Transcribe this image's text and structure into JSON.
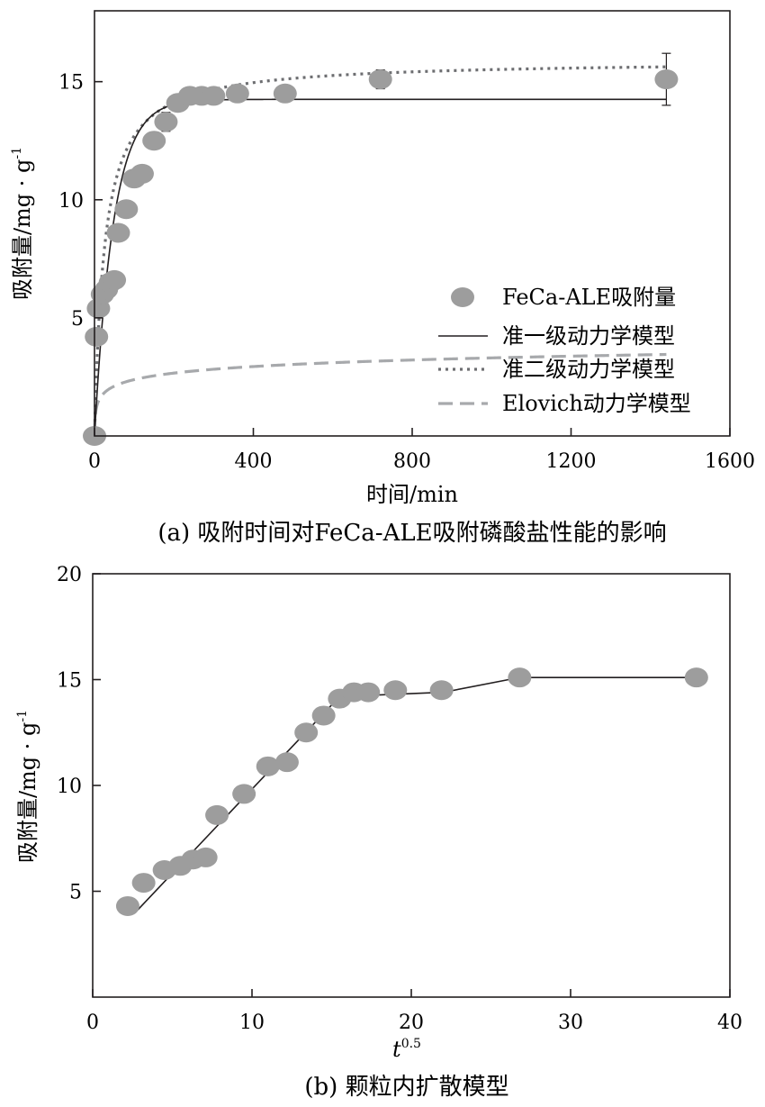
{
  "chart_data": [
    {
      "type": "scatter",
      "caption": "(a) 吸附时间对FeCa-ALE吸附磷酸盐性能的影响",
      "xlabel": "时间/min",
      "ylabel": "吸附量/mg · g",
      "ylabel_sup": "-1",
      "xlim": [
        0,
        1600
      ],
      "ylim": [
        0,
        18
      ],
      "xticks": [
        0,
        400,
        800,
        1200,
        1600
      ],
      "yticks": [
        5,
        10,
        15
      ],
      "legend_position": "bottom-right",
      "grid": false,
      "series": [
        {
          "name": "FeCa-ALE吸附量",
          "kind": "points",
          "color": "#9d9d9d",
          "x": [
            0,
            5,
            10,
            20,
            30,
            40,
            50,
            60,
            80,
            100,
            120,
            150,
            180,
            210,
            240,
            270,
            300,
            360,
            480,
            720,
            1440
          ],
          "y": [
            0,
            4.2,
            5.4,
            6.0,
            6.2,
            6.5,
            6.6,
            8.6,
            9.6,
            10.9,
            11.1,
            12.5,
            13.3,
            14.1,
            14.4,
            14.4,
            14.4,
            14.5,
            14.5,
            15.1,
            15.1
          ],
          "yerr": [
            0,
            0.2,
            0.2,
            0.2,
            0.2,
            0.3,
            0.2,
            0.3,
            0.3,
            0.3,
            0.3,
            0.3,
            0.4,
            0.3,
            0.3,
            0.3,
            0.3,
            0.3,
            0.3,
            0.4,
            1.1
          ]
        },
        {
          "name": "准一级动力学模型",
          "kind": "line",
          "color": "#231f20",
          "dash": "solid",
          "qe": 14.25,
          "k": 0.021
        },
        {
          "name": "准二级动力学模型",
          "kind": "line",
          "color": "#6d6e71",
          "dash": "dotted",
          "qe": 15.9,
          "k": 0.0025
        },
        {
          "name": "Elovich动力学模型",
          "kind": "line",
          "color": "#a7a9ac",
          "dash": "dashed",
          "a": 1.55,
          "b": 2.5
        }
      ]
    },
    {
      "type": "scatter",
      "caption": "(b) 颗粒内扩散模型",
      "xlabel": "t",
      "xlabel_sup": "0.5",
      "ylabel": "吸附量/mg · g",
      "ylabel_sup": "-1",
      "xlim": [
        0,
        40
      ],
      "ylim": [
        0,
        20
      ],
      "xticks": [
        0,
        10,
        20,
        30,
        40
      ],
      "yticks": [
        5,
        10,
        15,
        20
      ],
      "grid": false,
      "series": [
        {
          "kind": "points",
          "color": "#9d9d9d",
          "x": [
            2.2,
            3.2,
            4.5,
            5.5,
            6.3,
            7.1,
            7.8,
            9.5,
            11.0,
            12.2,
            13.4,
            14.5,
            15.5,
            16.4,
            17.3,
            19.0,
            21.9,
            26.8,
            37.9
          ],
          "y": [
            4.3,
            5.4,
            6.0,
            6.2,
            6.5,
            6.6,
            8.6,
            9.6,
            10.9,
            11.1,
            12.5,
            13.3,
            14.1,
            14.4,
            14.4,
            14.5,
            14.5,
            15.1,
            15.1
          ]
        },
        {
          "kind": "line",
          "color": "#231f20",
          "x": [
            2.8,
            15.5,
            22.0,
            26.8,
            37.9
          ],
          "y": [
            4.1,
            14.2,
            14.4,
            15.1,
            15.1
          ]
        }
      ]
    }
  ]
}
